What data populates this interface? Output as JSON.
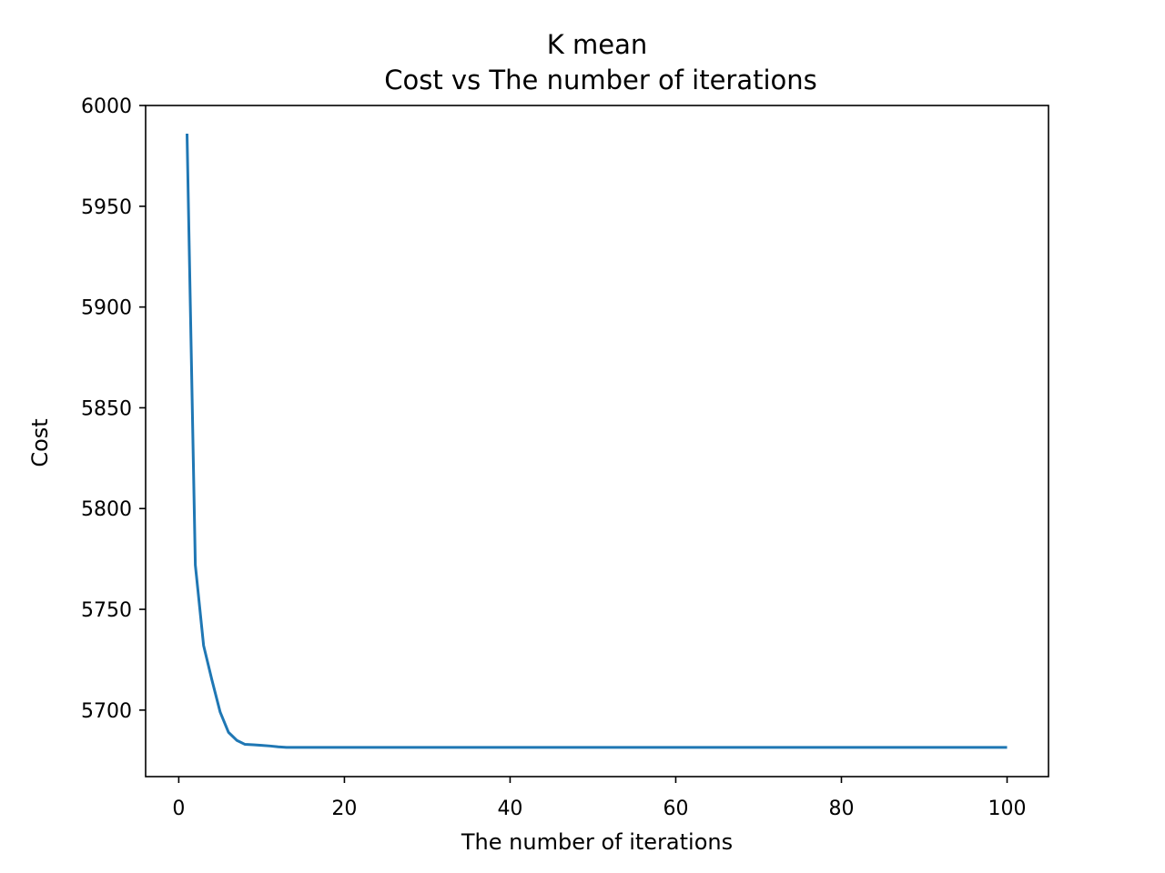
{
  "chart_data": {
    "type": "line",
    "title": "K mean",
    "subtitle": "Cost vs The number of iterations",
    "xlabel": "The number of iterations",
    "ylabel": "Cost",
    "xlim": [
      -4,
      105
    ],
    "ylim": [
      5667,
      6000
    ],
    "xticks": [
      0,
      20,
      40,
      60,
      80,
      100
    ],
    "yticks": [
      5700,
      5750,
      5800,
      5850,
      5900,
      5950,
      6000
    ],
    "grid": false,
    "series": [
      {
        "color": "#1f77b4",
        "x": [
          1,
          2,
          3,
          4,
          5,
          6,
          7,
          8,
          9,
          10,
          11,
          12,
          13,
          14,
          15,
          20,
          30,
          40,
          50,
          60,
          70,
          80,
          90,
          100
        ],
        "y": [
          5986,
          5772,
          5732,
          5715,
          5699,
          5689,
          5685,
          5683,
          5682.8,
          5682.5,
          5682.2,
          5681.8,
          5681.5,
          5681.5,
          5681.5,
          5681.5,
          5681.5,
          5681.5,
          5681.5,
          5681.5,
          5681.5,
          5681.5,
          5681.5,
          5681.5
        ]
      }
    ]
  }
}
